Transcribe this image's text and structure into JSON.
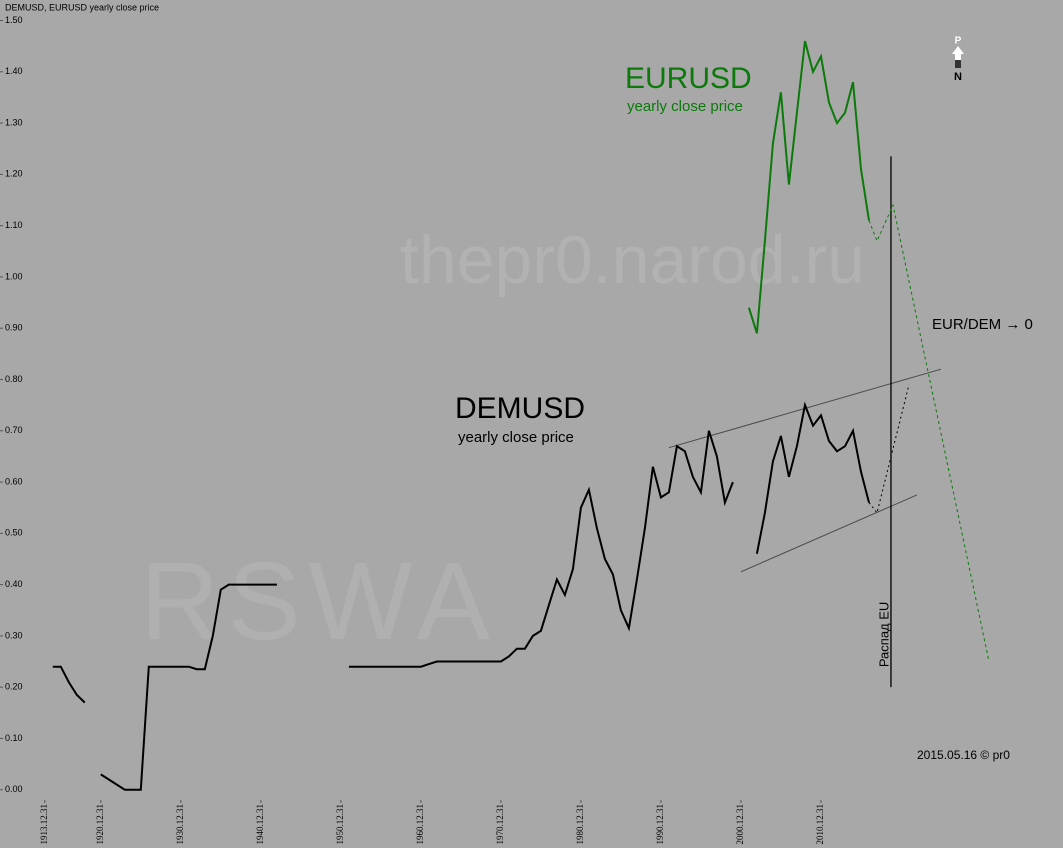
{
  "chart_data": {
    "type": "line",
    "title": "DEMUSD, EURUSD yearly close price",
    "xlim": [
      1907.4,
      2040.25
    ],
    "ylim": [
      -0.02,
      1.54
    ],
    "xticks": [
      {
        "value": 1913,
        "label": "1913.12.31"
      },
      {
        "value": 1920,
        "label": "1920.12.31"
      },
      {
        "value": 1930,
        "label": "1930.12.31"
      },
      {
        "value": 1940,
        "label": "1940.12.31"
      },
      {
        "value": 1950,
        "label": "1950.12.31"
      },
      {
        "value": 1960,
        "label": "1960.12.31"
      },
      {
        "value": 1970,
        "label": "1970.12.31"
      },
      {
        "value": 1980,
        "label": "1980.12.31"
      },
      {
        "value": 1990,
        "label": "1990.12.31"
      },
      {
        "value": 2000,
        "label": "2000.12.31"
      },
      {
        "value": 2010,
        "label": "2010.12.31"
      }
    ],
    "yticks": [
      {
        "value": 0,
        "label": "0.00"
      },
      {
        "value": 0.1,
        "label": "0.10"
      },
      {
        "value": 0.2,
        "label": "0.20"
      },
      {
        "value": 0.3,
        "label": "0.30"
      },
      {
        "value": 0.4,
        "label": "0.40"
      },
      {
        "value": 0.5,
        "label": "0.50"
      },
      {
        "value": 0.6,
        "label": "0.60"
      },
      {
        "value": 0.7,
        "label": "0.70"
      },
      {
        "value": 0.8,
        "label": "0.80"
      },
      {
        "value": 0.9,
        "label": "0.90"
      },
      {
        "value": 1.0,
        "label": "1.00"
      },
      {
        "value": 1.1,
        "label": "1.10"
      },
      {
        "value": 1.2,
        "label": "1.20"
      },
      {
        "value": 1.3,
        "label": "1.30"
      },
      {
        "value": 1.4,
        "label": "1.40"
      },
      {
        "value": 1.5,
        "label": "1.50"
      }
    ],
    "grid": false,
    "series": [
      {
        "name": "DEMUSD",
        "subtitle": "yearly close price",
        "color": "#000000",
        "x": [
          1914,
          1915,
          1916,
          1917,
          1918,
          1919,
          1920,
          1921,
          1922,
          1923,
          1924,
          1925,
          1926,
          1927,
          1928,
          1929,
          1930,
          1931,
          1932,
          1933,
          1934,
          1935,
          1936,
          1937,
          1938,
          1939,
          1940,
          1941,
          1942,
          1950,
          1951,
          1952,
          1953,
          1954,
          1955,
          1956,
          1957,
          1958,
          1959,
          1960,
          1961,
          1962,
          1963,
          1964,
          1965,
          1966,
          1967,
          1968,
          1969,
          1970,
          1971,
          1972,
          1973,
          1974,
          1975,
          1976,
          1977,
          1978,
          1979,
          1980,
          1981,
          1982,
          1983,
          1984,
          1985,
          1986,
          1987,
          1988,
          1989,
          1990,
          1991,
          1992,
          1993,
          1994,
          1995,
          1996,
          1997,
          1998,
          1999,
          2000,
          2002,
          2003,
          2004,
          2005,
          2006,
          2007,
          2008,
          2009,
          2010,
          2011,
          2012,
          2013,
          2014,
          2015,
          2016
        ],
        "values": [
          0.24,
          0.24,
          0.21,
          0.185,
          0.17,
          null,
          0.03,
          0.02,
          0.01,
          0,
          0,
          0,
          0.24,
          0.24,
          0.24,
          0.24,
          0.24,
          0.24,
          0.235,
          0.235,
          0.3,
          0.39,
          0.4,
          0.4,
          0.4,
          0.4,
          0.4,
          0.4,
          0.4,
          null,
          0.24,
          0.24,
          0.24,
          0.24,
          0.24,
          0.24,
          0.24,
          0.24,
          0.24,
          0.24,
          0.245,
          0.25,
          0.25,
          0.25,
          0.25,
          0.25,
          0.25,
          0.25,
          0.25,
          0.25,
          0.26,
          0.275,
          0.275,
          0.3,
          0.31,
          0.36,
          0.41,
          0.38,
          0.43,
          0.55,
          0.585,
          0.51,
          0.45,
          0.42,
          0.35,
          0.315,
          0.41,
          0.51,
          0.63,
          0.57,
          0.58,
          0.67,
          0.66,
          0.61,
          0.58,
          0.7,
          0.65,
          0.56,
          0.6,
          null,
          0.46,
          0.54,
          0.64,
          0.69,
          0.61,
          0.67,
          0.75,
          0.71,
          0.73,
          0.68,
          0.66,
          0.67,
          0.7,
          0.62,
          0.56
        ]
      },
      {
        "name": "EURUSD",
        "subtitle": "yearly close price",
        "color": "#0b7a0b",
        "x": [
          2001,
          2002,
          2003,
          2004,
          2005,
          2006,
          2007,
          2008,
          2009,
          2010,
          2011,
          2012,
          2013,
          2014,
          2015,
          2016
        ],
        "values": [
          0.94,
          0.89,
          1.07,
          1.26,
          1.36,
          1.18,
          1.32,
          1.46,
          1.4,
          1.43,
          1.34,
          1.3,
          1.32,
          1.38,
          1.21,
          1.11
        ]
      },
      {
        "color": "#000000",
        "dash": "2,3",
        "x": [
          2016,
          2017,
          2021
        ],
        "values": [
          0.56,
          0.54,
          0.79
        ]
      },
      {
        "color": "#0b7a0b",
        "dash": "3,3",
        "x": [
          2016,
          2017,
          2019,
          2031
        ],
        "values": [
          1.11,
          1.07,
          1.14,
          0.25
        ]
      }
    ],
    "trend_lines": [
      {
        "color": "#4a4a4a",
        "x": [
          1991,
          2025
        ],
        "values": [
          0.667,
          0.82
        ]
      },
      {
        "color": "#4a4a4a",
        "x": [
          2000,
          2022
        ],
        "values": [
          0.425,
          0.575
        ]
      }
    ],
    "vertical_line": {
      "text": "Распад EU",
      "x": 2018.75,
      "values": [
        0.2,
        1.235
      ]
    },
    "annotations": [
      "EUR/DEM → 0",
      "2015.05.16 © pr0"
    ],
    "watermarks": [
      "thepr0.narod.ru",
      "RSWA"
    ],
    "compass": [
      "P",
      "N"
    ]
  }
}
